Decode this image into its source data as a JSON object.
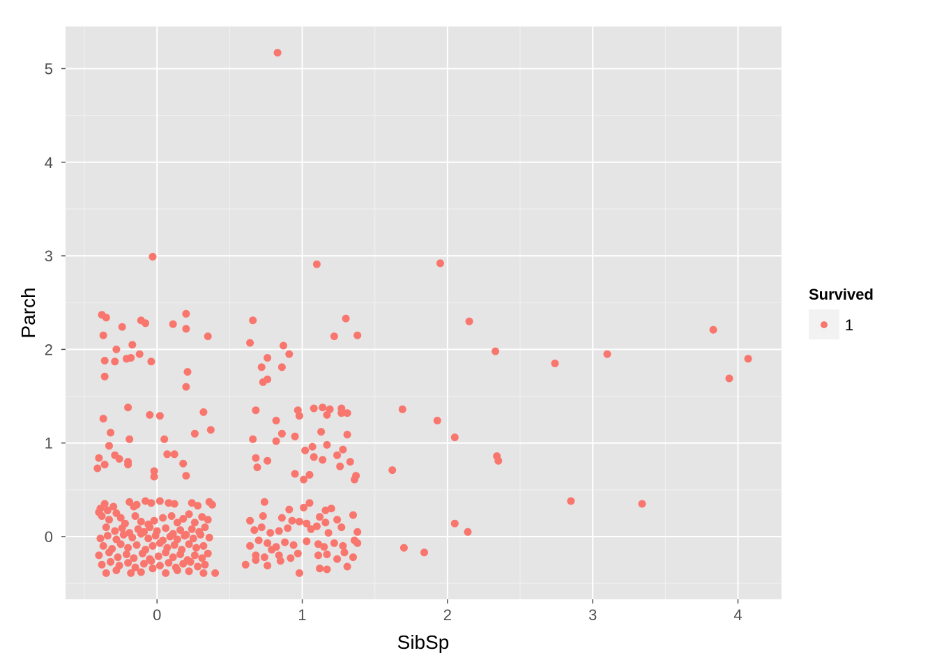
{
  "colors": {
    "panel": "#e5e5e5",
    "grid_major": "#ffffff",
    "grid_minor": "#f2f2f2",
    "point": "#f8766d",
    "legend_key_bg": "#f2f2f2",
    "tick": "#4d4d4d"
  },
  "chart_data": {
    "type": "scatter",
    "title": "",
    "xlabel": "SibSp",
    "ylabel": "Parch",
    "xlim": [
      -0.63,
      4.3
    ],
    "ylim": [
      -0.67,
      5.45
    ],
    "x_ticks": [
      0,
      1,
      2,
      3,
      4
    ],
    "x_tick_labels": [
      "0",
      "1",
      "2",
      "3",
      "4"
    ],
    "y_ticks": [
      0,
      1,
      2,
      3,
      4,
      5
    ],
    "y_tick_labels": [
      "0",
      "1",
      "2",
      "3",
      "4",
      "5"
    ],
    "grid": true,
    "legend": {
      "title": "Survived",
      "position": "right",
      "entries": [
        "1"
      ]
    },
    "series": [
      {
        "name": "1",
        "points": [
          [
            0.83,
            5.17
          ],
          [
            -0.03,
            2.99
          ],
          [
            1.1,
            2.91
          ],
          [
            1.95,
            2.92
          ],
          [
            -0.38,
            2.37
          ],
          [
            -0.35,
            2.34
          ],
          [
            -0.24,
            2.24
          ],
          [
            -0.11,
            2.31
          ],
          [
            -0.08,
            2.28
          ],
          [
            0.11,
            2.27
          ],
          [
            0.2,
            2.38
          ],
          [
            0.2,
            2.22
          ],
          [
            0.35,
            2.14
          ],
          [
            -0.37,
            2.15
          ],
          [
            -0.28,
            2.0
          ],
          [
            -0.17,
            2.05
          ],
          [
            -0.12,
            1.95
          ],
          [
            -0.18,
            1.91
          ],
          [
            -0.21,
            1.9
          ],
          [
            -0.29,
            1.87
          ],
          [
            -0.36,
            1.88
          ],
          [
            -0.04,
            1.87
          ],
          [
            -0.36,
            1.71
          ],
          [
            0.21,
            1.76
          ],
          [
            0.2,
            1.6
          ],
          [
            0.66,
            2.31
          ],
          [
            0.64,
            2.07
          ],
          [
            0.87,
            2.04
          ],
          [
            0.91,
            1.95
          ],
          [
            0.76,
            1.91
          ],
          [
            0.72,
            1.81
          ],
          [
            0.86,
            1.81
          ],
          [
            0.76,
            1.68
          ],
          [
            0.73,
            1.65
          ],
          [
            1.22,
            2.14
          ],
          [
            1.3,
            2.33
          ],
          [
            1.38,
            2.15
          ],
          [
            2.15,
            2.3
          ],
          [
            2.33,
            1.98
          ],
          [
            2.74,
            1.85
          ],
          [
            3.1,
            1.95
          ],
          [
            3.83,
            2.21
          ],
          [
            3.94,
            1.69
          ],
          [
            4.07,
            1.9
          ],
          [
            -0.2,
            1.38
          ],
          [
            -0.05,
            1.3
          ],
          [
            0.02,
            1.29
          ],
          [
            0.32,
            1.33
          ],
          [
            -0.37,
            1.26
          ],
          [
            0.37,
            1.14
          ],
          [
            0.26,
            1.1
          ],
          [
            -0.32,
            1.11
          ],
          [
            -0.19,
            1.04
          ],
          [
            0.05,
            1.04
          ],
          [
            -0.33,
            0.97
          ],
          [
            0.07,
            0.88
          ],
          [
            0.12,
            0.88
          ],
          [
            -0.29,
            0.87
          ],
          [
            -0.26,
            0.83
          ],
          [
            -0.4,
            0.84
          ],
          [
            -0.2,
            0.8
          ],
          [
            -0.2,
            0.77
          ],
          [
            -0.36,
            0.77
          ],
          [
            0.18,
            0.78
          ],
          [
            -0.41,
            0.73
          ],
          [
            -0.02,
            0.7
          ],
          [
            -0.02,
            0.64
          ],
          [
            0.2,
            0.65
          ],
          [
            0.68,
            1.35
          ],
          [
            0.82,
            1.24
          ],
          [
            0.66,
            1.04
          ],
          [
            0.86,
            1.1
          ],
          [
            0.82,
            1.02
          ],
          [
            0.95,
            1.07
          ],
          [
            0.97,
            1.35
          ],
          [
            0.98,
            1.29
          ],
          [
            1.08,
            1.37
          ],
          [
            1.14,
            1.38
          ],
          [
            1.17,
            1.3
          ],
          [
            1.19,
            1.36
          ],
          [
            1.27,
            1.37
          ],
          [
            1.27,
            1.32
          ],
          [
            1.31,
            1.32
          ],
          [
            1.13,
            1.12
          ],
          [
            1.31,
            1.09
          ],
          [
            1.07,
            0.96
          ],
          [
            1.17,
            0.98
          ],
          [
            1.02,
            0.92
          ],
          [
            1.28,
            0.93
          ],
          [
            0.68,
            0.84
          ],
          [
            0.76,
            0.81
          ],
          [
            1.08,
            0.85
          ],
          [
            1.14,
            0.82
          ],
          [
            1.24,
            0.87
          ],
          [
            1.33,
            0.8
          ],
          [
            0.69,
            0.74
          ],
          [
            1.26,
            0.75
          ],
          [
            0.95,
            0.67
          ],
          [
            1.05,
            0.66
          ],
          [
            1.01,
            0.61
          ],
          [
            1.37,
            0.65
          ],
          [
            1.36,
            0.61
          ],
          [
            1.69,
            1.36
          ],
          [
            1.62,
            0.71
          ],
          [
            1.93,
            1.24
          ],
          [
            2.05,
            1.06
          ],
          [
            2.34,
            0.86
          ],
          [
            2.35,
            0.81
          ],
          [
            -0.36,
            0.35
          ],
          [
            -0.39,
            0.3
          ],
          [
            -0.4,
            0.26
          ],
          [
            -0.34,
            0.28
          ],
          [
            -0.3,
            0.32
          ],
          [
            -0.28,
            0.25
          ],
          [
            -0.19,
            0.37
          ],
          [
            -0.16,
            0.32
          ],
          [
            -0.14,
            0.34
          ],
          [
            -0.08,
            0.38
          ],
          [
            -0.04,
            0.36
          ],
          [
            0.02,
            0.38
          ],
          [
            0.08,
            0.36
          ],
          [
            0.12,
            0.35
          ],
          [
            0.24,
            0.36
          ],
          [
            0.28,
            0.33
          ],
          [
            0.36,
            0.37
          ],
          [
            0.38,
            0.34
          ],
          [
            -0.38,
            0.22
          ],
          [
            -0.33,
            0.18
          ],
          [
            -0.25,
            0.2
          ],
          [
            -0.22,
            0.14
          ],
          [
            -0.15,
            0.22
          ],
          [
            -0.11,
            0.16
          ],
          [
            -0.06,
            0.13
          ],
          [
            -0.02,
            0.17
          ],
          [
            0.04,
            0.2
          ],
          [
            0.1,
            0.22
          ],
          [
            0.14,
            0.15
          ],
          [
            0.18,
            0.19
          ],
          [
            0.22,
            0.24
          ],
          [
            0.26,
            0.15
          ],
          [
            0.31,
            0.21
          ],
          [
            0.35,
            0.18
          ],
          [
            -0.35,
            0.1
          ],
          [
            -0.29,
            0.06
          ],
          [
            -0.24,
            0.09
          ],
          [
            -0.19,
            0.04
          ],
          [
            -0.13,
            0.08
          ],
          [
            -0.09,
            0.05
          ],
          [
            -0.05,
            0.1
          ],
          [
            0.0,
            0.06
          ],
          [
            0.06,
            0.09
          ],
          [
            0.11,
            0.03
          ],
          [
            0.16,
            0.07
          ],
          [
            0.2,
            0.02
          ],
          [
            0.24,
            0.08
          ],
          [
            0.29,
            0.05
          ],
          [
            0.33,
            0.1
          ],
          [
            -0.39,
            -0.02
          ],
          [
            -0.34,
            0.01
          ],
          [
            -0.28,
            -0.03
          ],
          [
            -0.23,
            0.02
          ],
          [
            -0.17,
            -0.01
          ],
          [
            -0.11,
            0.03
          ],
          [
            -0.06,
            -0.02
          ],
          [
            -0.01,
            0.01
          ],
          [
            0.04,
            -0.04
          ],
          [
            0.09,
            0.0
          ],
          [
            0.14,
            -0.03
          ],
          [
            0.19,
            0.01
          ],
          [
            0.25,
            -0.02
          ],
          [
            0.3,
            0.02
          ],
          [
            0.36,
            -0.01
          ],
          [
            -0.37,
            -0.1
          ],
          [
            -0.31,
            -0.13
          ],
          [
            -0.25,
            -0.08
          ],
          [
            -0.2,
            -0.12
          ],
          [
            -0.14,
            -0.09
          ],
          [
            -0.08,
            -0.14
          ],
          [
            -0.03,
            -0.1
          ],
          [
            0.02,
            -0.07
          ],
          [
            0.07,
            -0.12
          ],
          [
            0.12,
            -0.09
          ],
          [
            0.17,
            -0.14
          ],
          [
            0.22,
            -0.08
          ],
          [
            0.27,
            -0.12
          ],
          [
            0.32,
            -0.1
          ],
          [
            -0.4,
            -0.2
          ],
          [
            -0.33,
            -0.17
          ],
          [
            -0.27,
            -0.22
          ],
          [
            -0.21,
            -0.19
          ],
          [
            -0.16,
            -0.23
          ],
          [
            -0.1,
            -0.18
          ],
          [
            -0.05,
            -0.24
          ],
          [
            0.01,
            -0.21
          ],
          [
            0.06,
            -0.17
          ],
          [
            0.11,
            -0.22
          ],
          [
            0.16,
            -0.19
          ],
          [
            0.21,
            -0.25
          ],
          [
            0.26,
            -0.2
          ],
          [
            0.31,
            -0.23
          ],
          [
            0.35,
            -0.18
          ],
          [
            -0.38,
            -0.3
          ],
          [
            -0.32,
            -0.27
          ],
          [
            -0.26,
            -0.31
          ],
          [
            -0.2,
            -0.28
          ],
          [
            -0.15,
            -0.33
          ],
          [
            -0.09,
            -0.29
          ],
          [
            -0.04,
            -0.26
          ],
          [
            0.02,
            -0.31
          ],
          [
            0.08,
            -0.28
          ],
          [
            0.13,
            -0.33
          ],
          [
            0.18,
            -0.29
          ],
          [
            0.23,
            -0.27
          ],
          [
            0.28,
            -0.32
          ],
          [
            0.33,
            -0.3
          ],
          [
            -0.35,
            -0.39
          ],
          [
            -0.28,
            -0.36
          ],
          [
            -0.18,
            -0.39
          ],
          [
            -0.11,
            -0.38
          ],
          [
            -0.03,
            -0.34
          ],
          [
            0.06,
            -0.39
          ],
          [
            0.14,
            -0.36
          ],
          [
            0.22,
            -0.37
          ],
          [
            0.32,
            -0.39
          ],
          [
            0.4,
            -0.39
          ],
          [
            0.74,
            0.37
          ],
          [
            0.91,
            0.29
          ],
          [
            1.01,
            0.31
          ],
          [
            1.05,
            0.36
          ],
          [
            1.16,
            0.28
          ],
          [
            1.2,
            0.3
          ],
          [
            1.35,
            0.23
          ],
          [
            0.64,
            0.17
          ],
          [
            0.73,
            0.22
          ],
          [
            0.86,
            0.2
          ],
          [
            0.93,
            0.17
          ],
          [
            0.98,
            0.16
          ],
          [
            1.03,
            0.14
          ],
          [
            1.12,
            0.21
          ],
          [
            1.16,
            0.15
          ],
          [
            1.24,
            0.18
          ],
          [
            0.67,
            0.07
          ],
          [
            0.72,
            0.1
          ],
          [
            0.78,
            0.04
          ],
          [
            0.84,
            0.06
          ],
          [
            0.9,
            0.09
          ],
          [
            1.06,
            0.08
          ],
          [
            1.1,
            0.11
          ],
          [
            1.18,
            0.04
          ],
          [
            1.27,
            0.1
          ],
          [
            1.38,
            0.05
          ],
          [
            0.64,
            -0.1
          ],
          [
            0.7,
            -0.04
          ],
          [
            0.76,
            -0.07
          ],
          [
            0.82,
            -0.11
          ],
          [
            0.88,
            -0.06
          ],
          [
            0.94,
            -0.09
          ],
          [
            1.03,
            -0.05
          ],
          [
            1.11,
            -0.08
          ],
          [
            1.15,
            -0.11
          ],
          [
            1.22,
            -0.07
          ],
          [
            1.28,
            -0.1
          ],
          [
            1.36,
            -0.04
          ],
          [
            1.38,
            -0.07
          ],
          [
            0.68,
            -0.2
          ],
          [
            0.74,
            -0.22
          ],
          [
            0.79,
            -0.14
          ],
          [
            0.84,
            -0.2
          ],
          [
            0.92,
            -0.23
          ],
          [
            0.97,
            -0.18
          ],
          [
            1.11,
            -0.2
          ],
          [
            1.17,
            -0.19
          ],
          [
            1.24,
            -0.24
          ],
          [
            1.29,
            -0.17
          ],
          [
            1.35,
            -0.22
          ],
          [
            0.61,
            -0.3
          ],
          [
            0.68,
            -0.25
          ],
          [
            0.76,
            -0.31
          ],
          [
            0.85,
            -0.26
          ],
          [
            0.98,
            -0.39
          ],
          [
            1.12,
            -0.34
          ],
          [
            1.17,
            -0.35
          ],
          [
            1.31,
            -0.32
          ],
          [
            1.7,
            -0.12
          ],
          [
            1.84,
            -0.17
          ],
          [
            2.05,
            0.14
          ],
          [
            2.14,
            0.05
          ],
          [
            2.85,
            0.38
          ],
          [
            3.34,
            0.35
          ]
        ]
      }
    ]
  }
}
